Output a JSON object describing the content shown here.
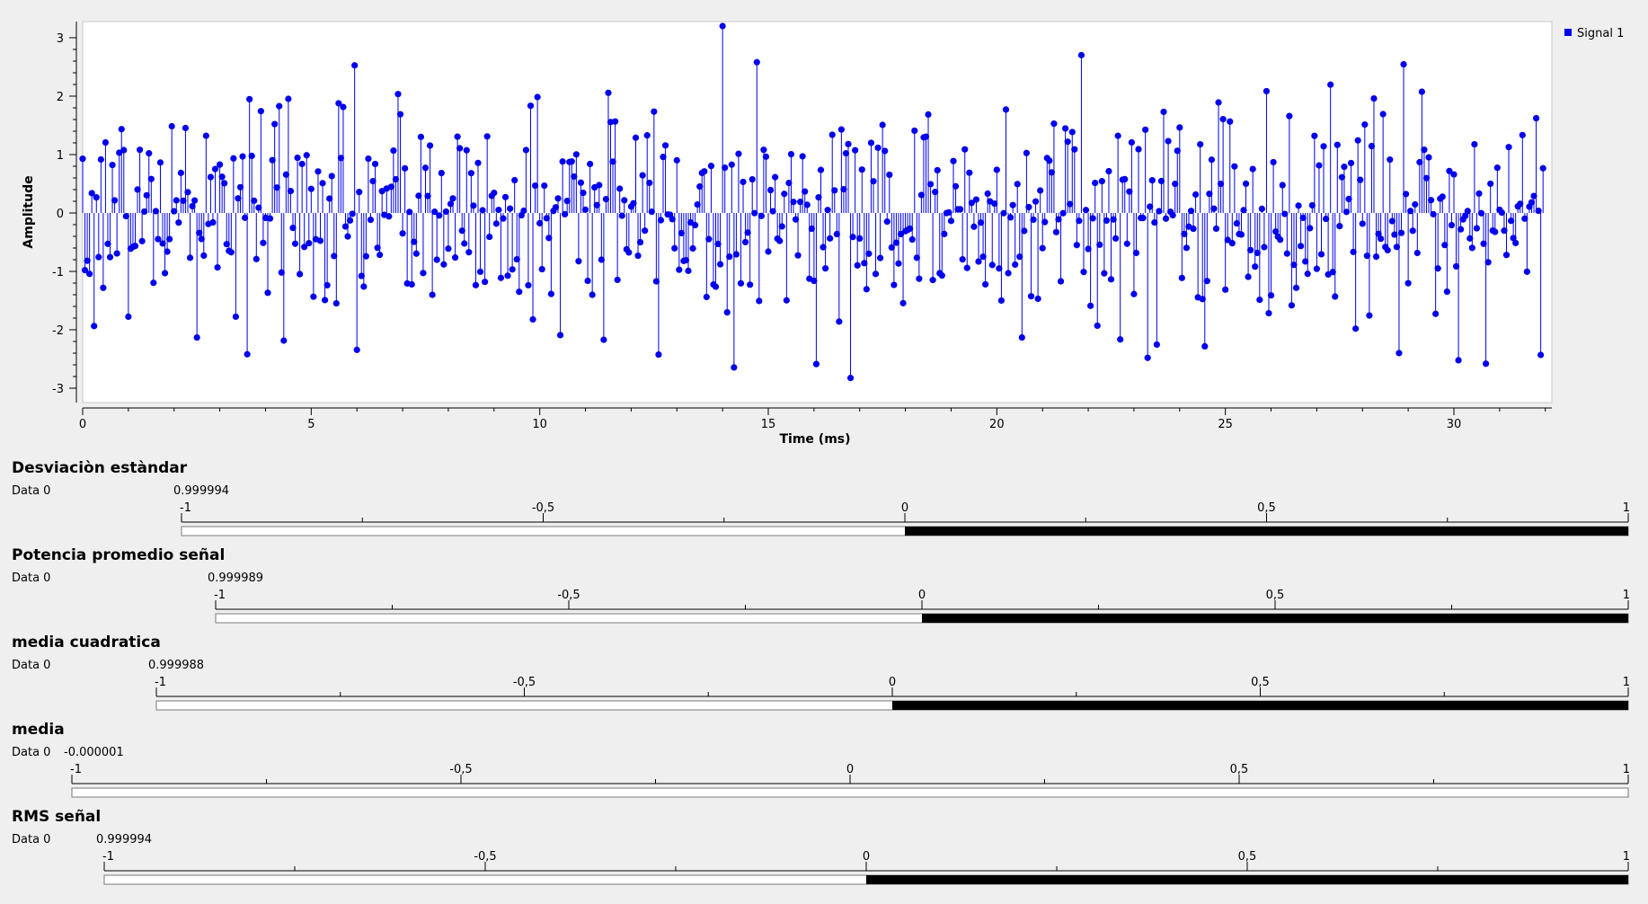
{
  "chart_data": {
    "type": "scatter",
    "style": "stem",
    "xlabel": "Time (ms)",
    "ylabel": "Amplitude",
    "xlim": [
      0,
      32
    ],
    "ylim": [
      -3.2,
      3.25
    ],
    "xticks": [
      0,
      5,
      10,
      15,
      20,
      25,
      30
    ],
    "yticks": [
      -3,
      -2,
      -1,
      0,
      1,
      2,
      3
    ],
    "legend_position": "top-right",
    "grid": false,
    "series": [
      {
        "name": "Signal 1",
        "color": "#0000ee",
        "sample_count": 640,
        "sample_spacing_ms": 0.05,
        "std": 1.0
      }
    ]
  },
  "gauges": [
    {
      "title": "Desviaciòn estàndar",
      "label": "Data 0",
      "value_text": "0.999994",
      "value": 0.999994,
      "min": -1,
      "max": 1,
      "ticks": [
        "-1",
        "-0,5",
        "0",
        "0,5",
        "1"
      ]
    },
    {
      "title": "Potencia promedio señal",
      "label": "Data 0",
      "value_text": "0.999989",
      "value": 0.999989,
      "min": -1,
      "max": 1,
      "ticks": [
        "-1",
        "-0,5",
        "0",
        "0,5",
        "1"
      ]
    },
    {
      "title": "media cuadratica",
      "label": "Data 0",
      "value_text": "0.999988",
      "value": 0.999988,
      "min": -1,
      "max": 1,
      "ticks": [
        "-1",
        "-0,5",
        "0",
        "0,5",
        "1"
      ]
    },
    {
      "title": "media",
      "label": "Data 0",
      "value_text": "-0.000001",
      "value": -1e-06,
      "min": -1,
      "max": 1,
      "ticks": [
        "-1",
        "-0,5",
        "0",
        "0,5",
        "1"
      ]
    },
    {
      "title": "RMS señal",
      "label": "Data 0",
      "value_text": "0.999994",
      "value": 0.999994,
      "min": -1,
      "max": 1,
      "ticks": [
        "-1",
        "-0,5",
        "0",
        "0,5",
        "1"
      ]
    }
  ]
}
